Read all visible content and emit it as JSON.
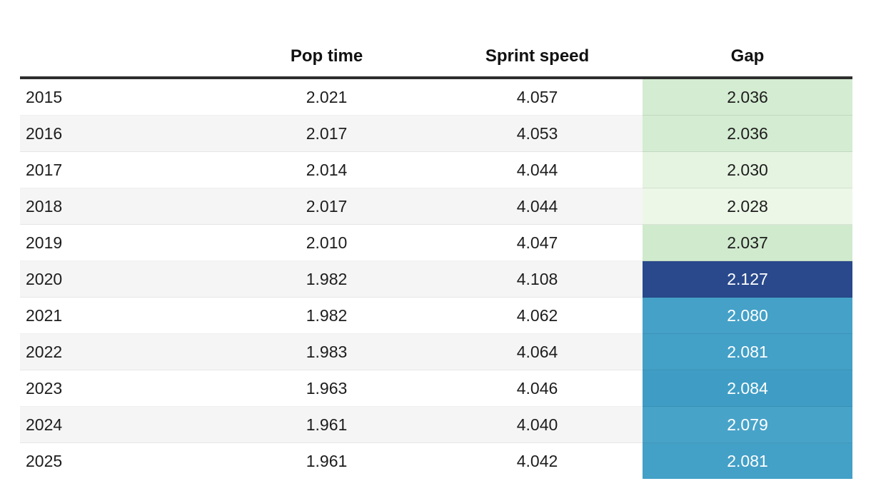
{
  "table": {
    "columns": [
      {
        "label": ""
      },
      {
        "label": "Pop time"
      },
      {
        "label": "Sprint speed"
      },
      {
        "label": "Gap"
      }
    ],
    "rows": [
      {
        "year": "2015",
        "pop_time": "2.021",
        "sprint_speed": "4.057",
        "gap": "2.036",
        "gap_bg": "#d4ecd2",
        "gap_fg": "#1d1d1d",
        "stripe": false
      },
      {
        "year": "2016",
        "pop_time": "2.017",
        "sprint_speed": "4.053",
        "gap": "2.036",
        "gap_bg": "#d4ecd2",
        "gap_fg": "#1d1d1d",
        "stripe": true
      },
      {
        "year": "2017",
        "pop_time": "2.014",
        "sprint_speed": "4.044",
        "gap": "2.030",
        "gap_bg": "#e5f3e1",
        "gap_fg": "#1d1d1d",
        "stripe": false
      },
      {
        "year": "2018",
        "pop_time": "2.017",
        "sprint_speed": "4.044",
        "gap": "2.028",
        "gap_bg": "#ecf7e8",
        "gap_fg": "#1d1d1d",
        "stripe": true
      },
      {
        "year": "2019",
        "pop_time": "2.010",
        "sprint_speed": "4.047",
        "gap": "2.037",
        "gap_bg": "#d0eacd",
        "gap_fg": "#1d1d1d",
        "stripe": false
      },
      {
        "year": "2020",
        "pop_time": "1.982",
        "sprint_speed": "4.108",
        "gap": "2.127",
        "gap_bg": "#29498c",
        "gap_fg": "#ffffff",
        "stripe": true
      },
      {
        "year": "2021",
        "pop_time": "1.982",
        "sprint_speed": "4.062",
        "gap": "2.080",
        "gap_bg": "#45a1c8",
        "gap_fg": "#ffffff",
        "stripe": false
      },
      {
        "year": "2022",
        "pop_time": "1.983",
        "sprint_speed": "4.064",
        "gap": "2.081",
        "gap_bg": "#43a0c7",
        "gap_fg": "#ffffff",
        "stripe": true
      },
      {
        "year": "2023",
        "pop_time": "1.963",
        "sprint_speed": "4.046",
        "gap": "2.084",
        "gap_bg": "#3f9dc5",
        "gap_fg": "#ffffff",
        "stripe": false
      },
      {
        "year": "2024",
        "pop_time": "1.961",
        "sprint_speed": "4.040",
        "gap": "2.079",
        "gap_bg": "#48a3c9",
        "gap_fg": "#ffffff",
        "stripe": true
      },
      {
        "year": "2025",
        "pop_time": "1.961",
        "sprint_speed": "4.042",
        "gap": "2.081",
        "gap_bg": "#43a0c7",
        "gap_fg": "#ffffff",
        "stripe": false
      }
    ]
  },
  "colors": {
    "header_rule": "#2e2e2e",
    "stripe_row": "#f5f5f5",
    "body_text": "#1d1d1d",
    "gap_green_strong": "#d0eacd",
    "gap_green_light": "#ecf7e8",
    "gap_blue_dark": "#29498c",
    "gap_blue_medium": "#43a0c7"
  },
  "chart_data": {
    "type": "table",
    "title": "",
    "columns": [
      "",
      "Pop time",
      "Sprint speed",
      "Gap"
    ],
    "rows": [
      [
        "2015",
        2.021,
        4.057,
        2.036
      ],
      [
        "2016",
        2.017,
        4.053,
        2.036
      ],
      [
        "2017",
        2.014,
        4.044,
        2.03
      ],
      [
        "2018",
        2.017,
        4.044,
        2.028
      ],
      [
        "2019",
        2.01,
        4.047,
        2.037
      ],
      [
        "2020",
        1.982,
        4.108,
        2.127
      ],
      [
        "2021",
        1.982,
        4.062,
        2.08
      ],
      [
        "2022",
        1.983,
        4.064,
        2.081
      ],
      [
        "2023",
        1.963,
        4.046,
        2.084
      ],
      [
        "2024",
        1.961,
        4.04,
        2.079
      ],
      [
        "2025",
        1.961,
        4.042,
        2.081
      ]
    ],
    "notes_layout": {
      "gap_column_heatmap": "green shades for low gap values (2.028-2.037), blue shades for high gap values (2.079-2.127), darkest blue at max 2.127",
      "zebra_striping": "alternating white and #f5f5f5 rows starting white"
    }
  }
}
